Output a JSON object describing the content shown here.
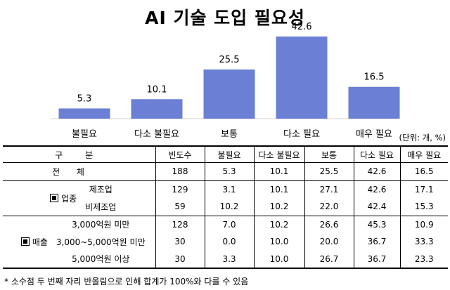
{
  "chart_data": {
    "type": "bar",
    "title": "AI 기술 도입 필요성",
    "categories": [
      "불필요",
      "다소 불필요",
      "보통",
      "다소 필요",
      "매우 필요"
    ],
    "values": [
      5.3,
      10.1,
      25.5,
      42.6,
      16.5
    ],
    "value_labels": [
      "5.3",
      "10.1",
      "25.5",
      "42.6",
      "16.5"
    ],
    "ylim": [
      0,
      42.6
    ],
    "grid": false,
    "legend": false,
    "colors": {
      "bar": "#6b7fd4"
    }
  },
  "unit_note": "(단위: 개, %)",
  "table": {
    "header": [
      "구 분",
      "빈도수",
      "불필요",
      "다소 불필요",
      "보통",
      "다소 필요",
      "매우 필요"
    ],
    "total": {
      "label": "전 체",
      "cells": [
        "188",
        "5.3",
        "10.1",
        "25.5",
        "42.6",
        "16.5"
      ]
    },
    "groups": [
      {
        "name": "업종",
        "rows": [
          {
            "label": "제조업",
            "cells": [
              "129",
              "3.1",
              "10.1",
              "27.1",
              "42.6",
              "17.1"
            ]
          },
          {
            "label": "비제조업",
            "cells": [
              "59",
              "10.2",
              "10.2",
              "22.0",
              "42.4",
              "15.3"
            ]
          }
        ]
      },
      {
        "name": "매출",
        "rows": [
          {
            "label": "3,000억원 미만",
            "cells": [
              "128",
              "7.0",
              "10.2",
              "26.6",
              "45.3",
              "10.9"
            ]
          },
          {
            "label": "3,000~5,000억원 미만",
            "cells": [
              "30",
              "0.0",
              "10.0",
              "20.0",
              "36.7",
              "33.3"
            ]
          },
          {
            "label": "5,000억원 이상",
            "cells": [
              "30",
              "3.3",
              "10.0",
              "26.7",
              "36.7",
              "23.3"
            ]
          }
        ]
      }
    ]
  },
  "footnote": "* 소수점 두 번째 자리 반올림으로 인해 합계가 100%와 다를 수 있음"
}
